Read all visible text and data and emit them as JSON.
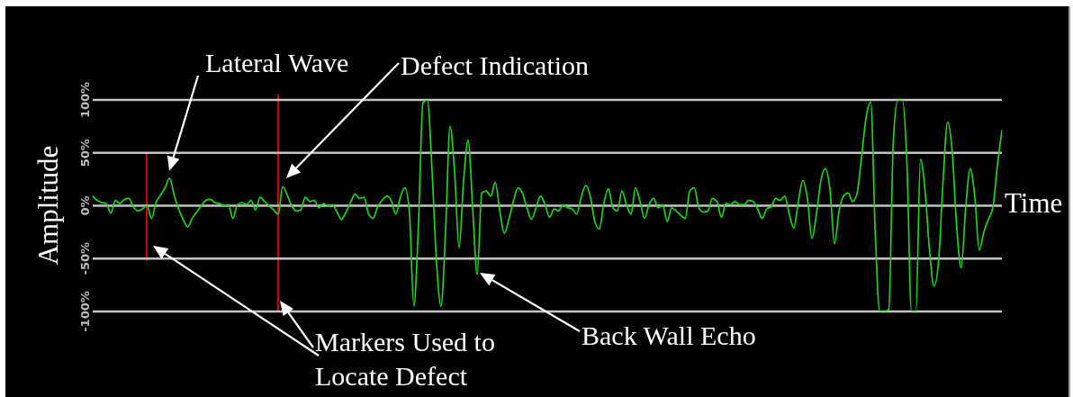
{
  "chart_data": {
    "type": "line",
    "xlabel": "Time",
    "ylabel": "Amplitude",
    "categories": [
      null,
      null,
      null,
      null,
      null,
      null,
      null,
      null,
      null,
      null,
      null,
      null,
      null,
      null,
      null,
      null,
      null,
      null,
      null,
      null,
      null,
      null,
      null,
      null,
      null,
      null,
      null,
      null,
      null,
      null,
      null,
      null,
      null,
      null,
      null,
      null,
      null,
      null,
      null,
      null,
      null,
      null,
      null,
      null,
      null,
      null,
      null,
      null,
      null,
      null,
      null,
      null,
      null,
      null,
      null,
      null,
      null,
      null,
      null,
      null,
      null,
      null,
      null,
      null,
      null,
      null,
      null,
      null,
      null,
      null,
      null,
      null,
      null,
      null,
      null,
      null,
      null,
      null,
      null,
      null,
      null,
      null,
      null,
      null,
      null,
      null,
      null,
      null,
      null,
      null,
      null,
      null,
      null,
      null,
      null,
      null,
      null,
      null,
      null,
      null,
      null,
      null,
      null,
      null,
      null,
      null,
      null,
      null,
      null,
      null,
      null,
      null,
      null,
      null,
      null,
      null,
      null,
      null,
      null,
      null,
      null,
      null,
      null,
      null,
      null,
      null,
      null,
      null,
      null,
      null,
      null,
      null,
      null,
      null,
      null,
      null,
      null,
      null,
      null,
      null,
      null,
      null,
      null,
      null,
      null,
      null,
      null,
      null,
      null,
      null,
      null,
      null,
      null,
      null,
      null,
      null,
      null,
      null,
      null,
      null,
      null,
      null,
      null,
      null,
      null,
      null,
      null,
      null,
      null,
      null,
      null,
      null,
      null,
      null,
      null,
      null,
      null,
      null,
      null,
      null,
      null,
      null,
      null,
      null,
      null,
      null,
      null,
      null,
      null,
      null,
      null,
      null,
      null,
      null,
      null,
      null,
      null,
      null,
      null,
      null,
      null,
      null
    ],
    "values": [
      9,
      5,
      3,
      2,
      -7,
      5,
      2,
      6,
      7,
      -1,
      -5,
      -3,
      0,
      -12,
      3,
      10,
      17,
      26,
      10,
      -3,
      -13,
      -20,
      -12,
      -6,
      0,
      5,
      6,
      3,
      2,
      0,
      1,
      -12,
      1,
      3,
      1,
      5,
      -4,
      8,
      4,
      0,
      -4,
      -8,
      18,
      10,
      0,
      -5,
      -4,
      8,
      4,
      5,
      -2,
      2,
      0,
      1,
      -6,
      -13,
      -6,
      3,
      11,
      7,
      8,
      -8,
      -12,
      -1,
      5,
      9,
      5,
      -8,
      8,
      17,
      -5,
      -95,
      -20,
      97,
      100,
      35,
      -53,
      -95,
      -25,
      75,
      32,
      -40,
      24,
      62,
      -2,
      -65,
      12,
      14,
      9,
      22,
      -5,
      -26,
      -13,
      4,
      17,
      12,
      -2,
      -13,
      -2,
      9,
      1,
      -11,
      -3,
      -5,
      1,
      -2,
      -3,
      -8,
      8,
      19,
      9,
      -15,
      -22,
      2,
      16,
      -2,
      -5,
      14,
      1,
      -8,
      17,
      4,
      -12,
      1,
      7,
      -2,
      1,
      -15,
      -2,
      -5,
      -9,
      -12,
      14,
      17,
      -2,
      -6,
      -5,
      7,
      4,
      -11,
      2,
      1,
      4,
      1,
      1,
      5,
      4,
      -3,
      -12,
      -3,
      -1,
      7,
      5,
      9,
      -8,
      -21,
      4,
      24,
      7,
      -31,
      -8,
      24,
      35,
      15,
      -36,
      -5,
      9,
      12,
      4,
      12,
      47,
      84,
      98,
      -25,
      -100,
      -100,
      -98,
      61,
      100,
      100,
      41,
      -100,
      -100,
      44,
      15,
      -42,
      -76,
      -53,
      24,
      79,
      52,
      -19,
      -59,
      -2,
      35,
      9,
      -42,
      -25,
      -13,
      -2,
      38,
      71
    ],
    "color": "#1fd31f",
    "ylim": [
      -100,
      100
    ],
    "yticks": [
      {
        "value": -100,
        "label": "-100%"
      },
      {
        "value": -50,
        "label": "-50%"
      },
      {
        "value": 0,
        "label": "0%"
      },
      {
        "value": 50,
        "label": "50%"
      },
      {
        "value": 100,
        "label": "100%"
      }
    ],
    "grid": "y",
    "tick_labels": "y",
    "annotations": [
      "Lateral Wave",
      "Defect Indication",
      "Markers Used to Locate Defect",
      "Back Wall Echo"
    ]
  }
}
